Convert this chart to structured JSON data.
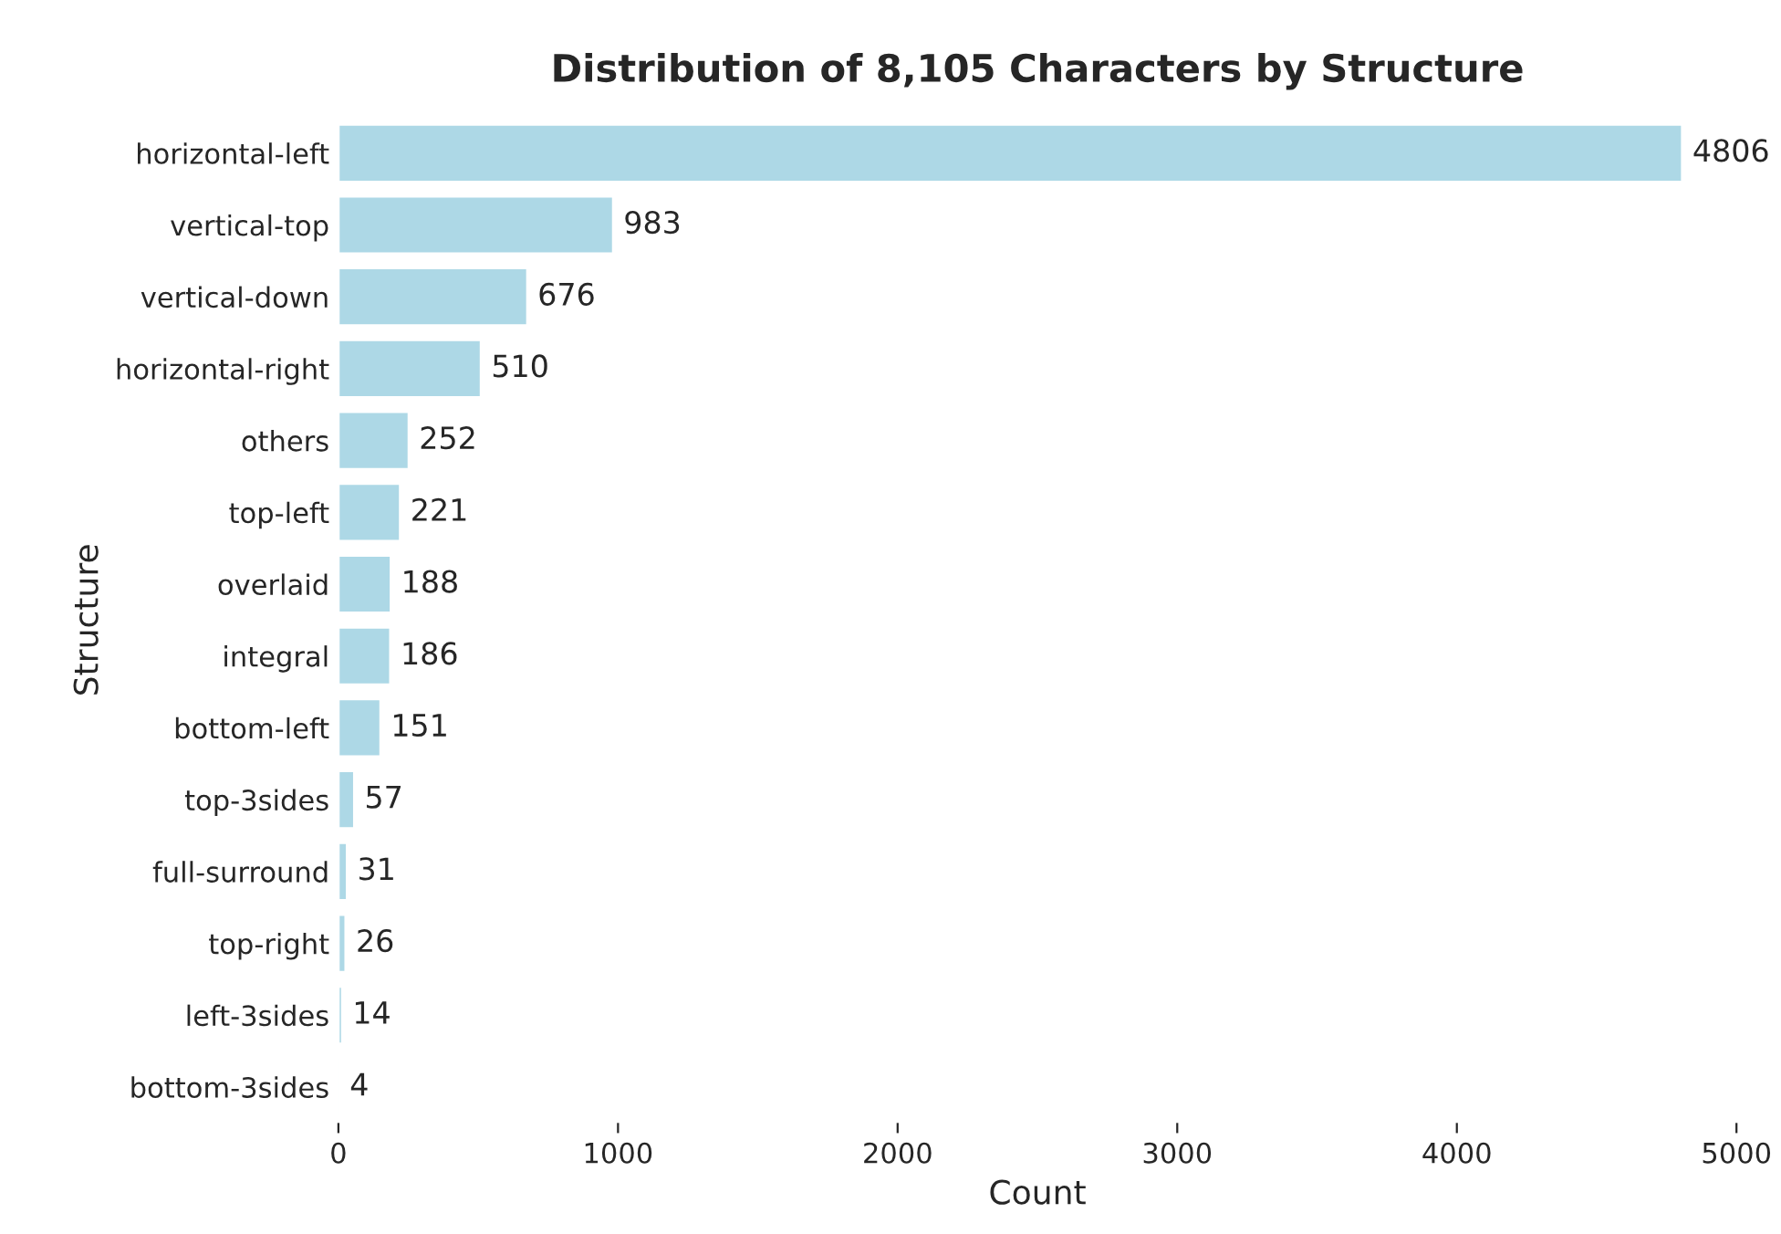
{
  "chart_data": {
    "type": "bar",
    "orientation": "horizontal",
    "title": "Distribution of 8,105 Characters by Structure",
    "xlabel": "Count",
    "ylabel": "Structure",
    "categories": [
      "horizontal-left",
      "vertical-top",
      "vertical-down",
      "horizontal-right",
      "others",
      "top-left",
      "overlaid",
      "integral",
      "bottom-left",
      "top-3sides",
      "full-surround",
      "top-right",
      "left-3sides",
      "bottom-3sides"
    ],
    "values": [
      4806,
      983,
      676,
      510,
      252,
      221,
      188,
      186,
      151,
      57,
      31,
      26,
      14,
      4
    ],
    "color": "#add8e6",
    "xlim": [
      0,
      5000
    ],
    "xticks": [
      0,
      1000,
      2000,
      3000,
      4000,
      5000
    ],
    "data_labels": true,
    "grid": false,
    "legend": false
  }
}
